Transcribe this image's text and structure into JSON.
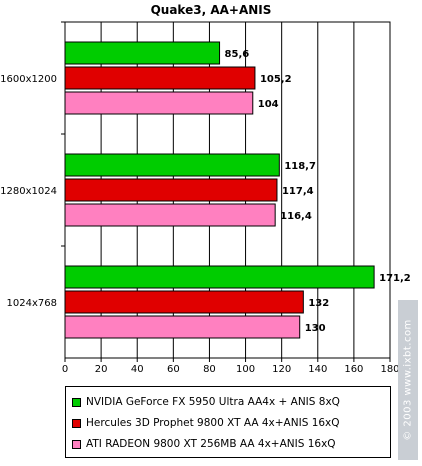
{
  "chart_data": {
    "type": "bar",
    "orientation": "horizontal",
    "title": "Quake3, AA+ANIS",
    "categories": [
      "1600x1200",
      "1280x1024",
      "1024x768"
    ],
    "series": [
      {
        "name": "NVIDIA GeForce FX 5950 Ultra AA4x + ANIS 8xQ",
        "color": "#00cc00",
        "values": [
          85.6,
          118.7,
          171.2
        ],
        "labels": [
          "85,6",
          "118,7",
          "171,2"
        ]
      },
      {
        "name": "Hercules 3D Prophet 9800 XT AA 4x+ANIS 16xQ",
        "color": "#e00000",
        "values": [
          105.2,
          117.4,
          132
        ],
        "labels": [
          "105,2",
          "117,4",
          "132"
        ]
      },
      {
        "name": "ATI RADEON 9800 XT 256MB AA 4x+ANIS 16xQ",
        "color": "#ff80c0",
        "values": [
          104,
          116.4,
          130
        ],
        "labels": [
          "104",
          "116,4",
          "130"
        ]
      }
    ],
    "xlim": [
      0,
      180
    ],
    "xticks": [
      "0",
      "20",
      "40",
      "60",
      "80",
      "100",
      "120",
      "140",
      "160",
      "180"
    ],
    "grid": "vertical",
    "legend": "bottom"
  },
  "watermark": "© 2003 www.ixbt.com"
}
